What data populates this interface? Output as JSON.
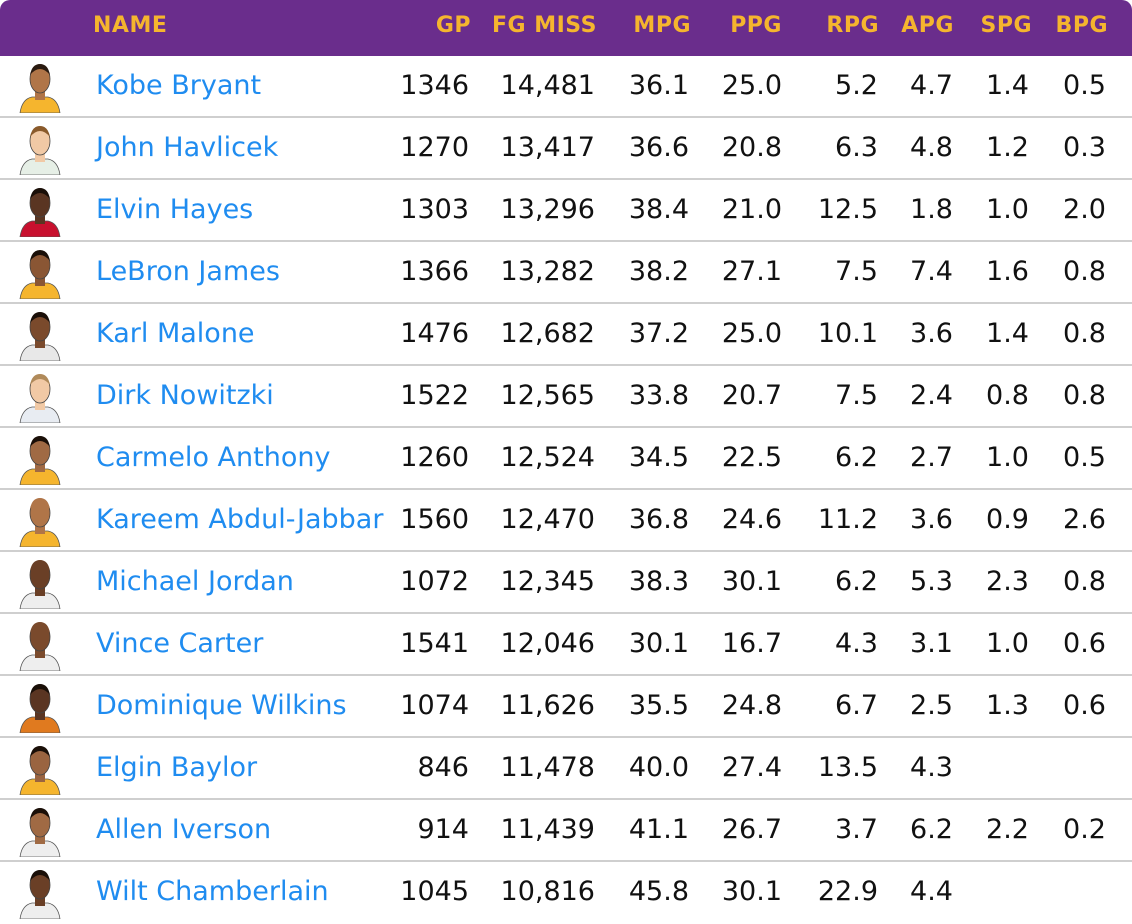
{
  "table": {
    "headers": {
      "name": "NAME",
      "gp": "GP",
      "fg_miss": "FG MISS",
      "mpg": "MPG",
      "ppg": "PPG",
      "rpg": "RPG",
      "apg": "APG",
      "spg": "SPG",
      "bpg": "BPG"
    },
    "rows": [
      {
        "name": "Kobe Bryant",
        "gp": "1346",
        "fg_miss": "14,481",
        "mpg": "36.1",
        "ppg": "25.0",
        "rpg": "5.2",
        "apg": "4.7",
        "spg": "1.4",
        "bpg": "0.5",
        "skin": "#b07548",
        "jersey": "#f5b52e",
        "hair": "#2a1a10"
      },
      {
        "name": "John Havlicek",
        "gp": "1270",
        "fg_miss": "13,417",
        "mpg": "36.6",
        "ppg": "20.8",
        "rpg": "6.3",
        "apg": "4.8",
        "spg": "1.2",
        "bpg": "0.3",
        "skin": "#f1c9a5",
        "jersey": "#e6efe6",
        "hair": "#8a5a2b"
      },
      {
        "name": "Elvin Hayes",
        "gp": "1303",
        "fg_miss": "13,296",
        "mpg": "38.4",
        "ppg": "21.0",
        "rpg": "12.5",
        "apg": "1.8",
        "spg": "1.0",
        "bpg": "2.0",
        "skin": "#5a3522",
        "jersey": "#c8102e",
        "hair": "#1a0f08"
      },
      {
        "name": "LeBron James",
        "gp": "1366",
        "fg_miss": "13,282",
        "mpg": "38.2",
        "ppg": "27.1",
        "rpg": "7.5",
        "apg": "7.4",
        "spg": "1.6",
        "bpg": "0.8",
        "skin": "#8a5634",
        "jersey": "#f5b52e",
        "hair": "#1a0f08"
      },
      {
        "name": "Karl Malone",
        "gp": "1476",
        "fg_miss": "12,682",
        "mpg": "37.2",
        "ppg": "25.0",
        "rpg": "10.1",
        "apg": "3.6",
        "spg": "1.4",
        "bpg": "0.8",
        "skin": "#7a4a2c",
        "jersey": "#e8e8e8",
        "hair": "#1a0f08"
      },
      {
        "name": "Dirk Nowitzki",
        "gp": "1522",
        "fg_miss": "12,565",
        "mpg": "33.8",
        "ppg": "20.7",
        "rpg": "7.5",
        "apg": "2.4",
        "spg": "0.8",
        "bpg": "0.8",
        "skin": "#f1c9a5",
        "jersey": "#e8ecf2",
        "hair": "#b08a5a"
      },
      {
        "name": "Carmelo Anthony",
        "gp": "1260",
        "fg_miss": "12,524",
        "mpg": "34.5",
        "ppg": "22.5",
        "rpg": "6.2",
        "apg": "2.7",
        "spg": "1.0",
        "bpg": "0.5",
        "skin": "#a06a44",
        "jersey": "#f5b52e",
        "hair": "#1a0f08"
      },
      {
        "name": "Kareem Abdul-Jabbar",
        "gp": "1560",
        "fg_miss": "12,470",
        "mpg": "36.8",
        "ppg": "24.6",
        "rpg": "11.2",
        "apg": "3.6",
        "spg": "0.9",
        "bpg": "2.6",
        "skin": "#b07548",
        "jersey": "#f5b52e",
        "hair": "#b07548"
      },
      {
        "name": "Michael Jordan",
        "gp": "1072",
        "fg_miss": "12,345",
        "mpg": "38.3",
        "ppg": "30.1",
        "rpg": "6.2",
        "apg": "5.3",
        "spg": "2.3",
        "bpg": "0.8",
        "skin": "#6a3f26",
        "jersey": "#eeeeee",
        "hair": "#6a3f26"
      },
      {
        "name": "Vince Carter",
        "gp": "1541",
        "fg_miss": "12,046",
        "mpg": "30.1",
        "ppg": "16.7",
        "rpg": "4.3",
        "apg": "3.1",
        "spg": "1.0",
        "bpg": "0.6",
        "skin": "#7a4a2c",
        "jersey": "#eeeeee",
        "hair": "#7a4a2c"
      },
      {
        "name": "Dominique Wilkins",
        "gp": "1074",
        "fg_miss": "11,626",
        "mpg": "35.5",
        "ppg": "24.8",
        "rpg": "6.7",
        "apg": "2.5",
        "spg": "1.3",
        "bpg": "0.6",
        "skin": "#5a3522",
        "jersey": "#e07a1f",
        "hair": "#1a0f08"
      },
      {
        "name": "Elgin Baylor",
        "gp": "846",
        "fg_miss": "11,478",
        "mpg": "40.0",
        "ppg": "27.4",
        "rpg": "13.5",
        "apg": "4.3",
        "spg": "",
        "bpg": "",
        "skin": "#9a6440",
        "jersey": "#f5b52e",
        "hair": "#1a0f08"
      },
      {
        "name": "Allen Iverson",
        "gp": "914",
        "fg_miss": "11,439",
        "mpg": "41.1",
        "ppg": "26.7",
        "rpg": "3.7",
        "apg": "6.2",
        "spg": "2.2",
        "bpg": "0.2",
        "skin": "#a06a44",
        "jersey": "#eeeeee",
        "hair": "#1a0f08"
      },
      {
        "name": "Wilt Chamberlain",
        "gp": "1045",
        "fg_miss": "10,816",
        "mpg": "45.8",
        "ppg": "30.1",
        "rpg": "22.9",
        "apg": "4.4",
        "spg": "",
        "bpg": "",
        "skin": "#6a3f26",
        "jersey": "#eeeeee",
        "hair": "#1a0f08"
      }
    ]
  }
}
